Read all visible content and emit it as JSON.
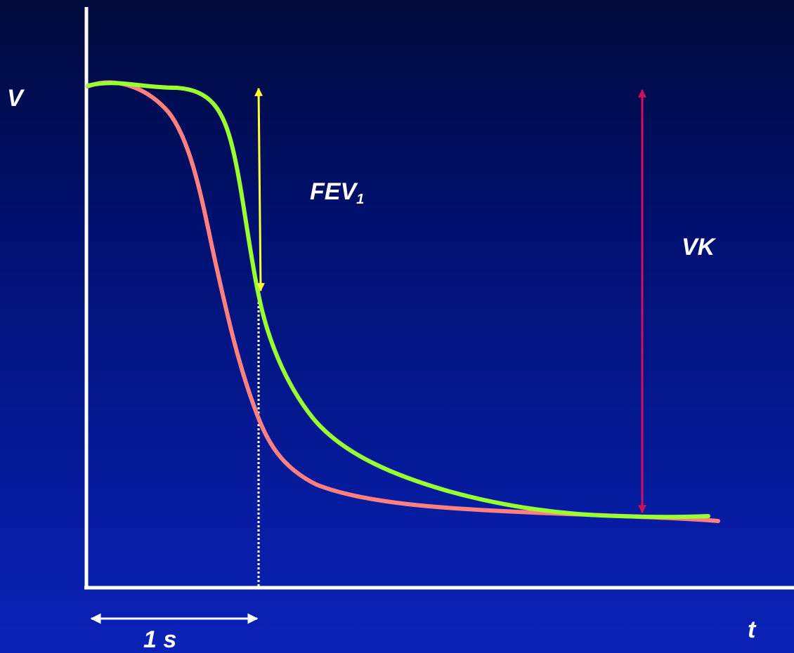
{
  "labels": {
    "y_axis": "V",
    "x_axis": "t",
    "time_span": "1 s",
    "fev_main": "FEV",
    "fev_sub": "1",
    "vk": "VK"
  },
  "colors": {
    "axes": "#ffffff",
    "normal_curve": "#99ff33",
    "obstructive_curve": "#ff8080",
    "fev_arrow": "#ffff33",
    "vk_arrow": "#d0105a",
    "one_second_marker": "#ffffff"
  }
}
